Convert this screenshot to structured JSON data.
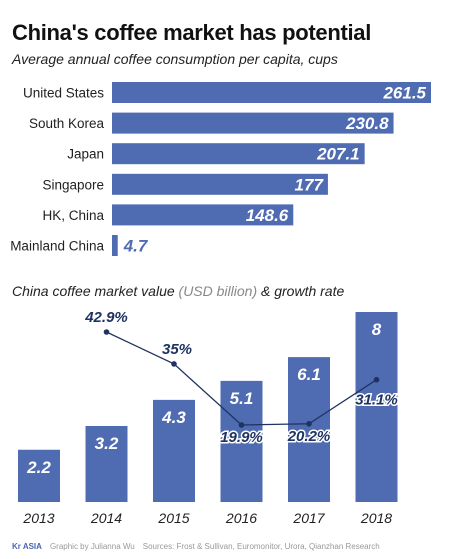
{
  "header": {
    "title": "China's coffee market has potential"
  },
  "footer": {
    "brand": "Kr ASIA",
    "credit": "Graphic by Julianna Wu",
    "sources": "Sources: Frost & Sullivan, Euromonitor, Urora, Qianzhan Research"
  },
  "colors": {
    "bar": "#4f6bb2",
    "line": "#1f3361",
    "bar_label": "#ffffff"
  },
  "chart_data": [
    {
      "type": "bar",
      "orientation": "horizontal",
      "title": "Average annual coffee consumption per capita, cups",
      "categories": [
        "United States",
        "South Korea",
        "Japan",
        "Singapore",
        "HK, China",
        "Mainland China"
      ],
      "values": [
        261.5,
        230.8,
        207.1,
        177,
        148.6,
        4.7
      ],
      "value_labels": [
        "261.5",
        "230.8",
        "207.1",
        "177",
        "148.6",
        "4.7"
      ],
      "xlim": [
        0,
        261.5
      ]
    },
    {
      "type": "bar",
      "title_main": "China coffee market value",
      "title_unit": "(USD billion)",
      "title_rest": "& growth rate",
      "categories": [
        "2013",
        "2014",
        "2015",
        "2016",
        "2017",
        "2018"
      ],
      "values": [
        2.2,
        3.2,
        4.3,
        5.1,
        6.1,
        8
      ],
      "value_labels": [
        "2.2",
        "3.2",
        "4.3",
        "5.1",
        "6.1",
        "8"
      ],
      "ylim": [
        0,
        8
      ],
      "growth_series": {
        "type": "line",
        "categories": [
          "2014",
          "2015",
          "2016",
          "2017",
          "2018"
        ],
        "values": [
          42.9,
          35,
          19.9,
          20.2,
          31.1
        ],
        "labels": [
          "42.9%",
          "35%",
          "19.9%",
          "20.2%",
          "31.1%"
        ],
        "ylim": [
          19.9,
          42.9
        ]
      }
    }
  ]
}
